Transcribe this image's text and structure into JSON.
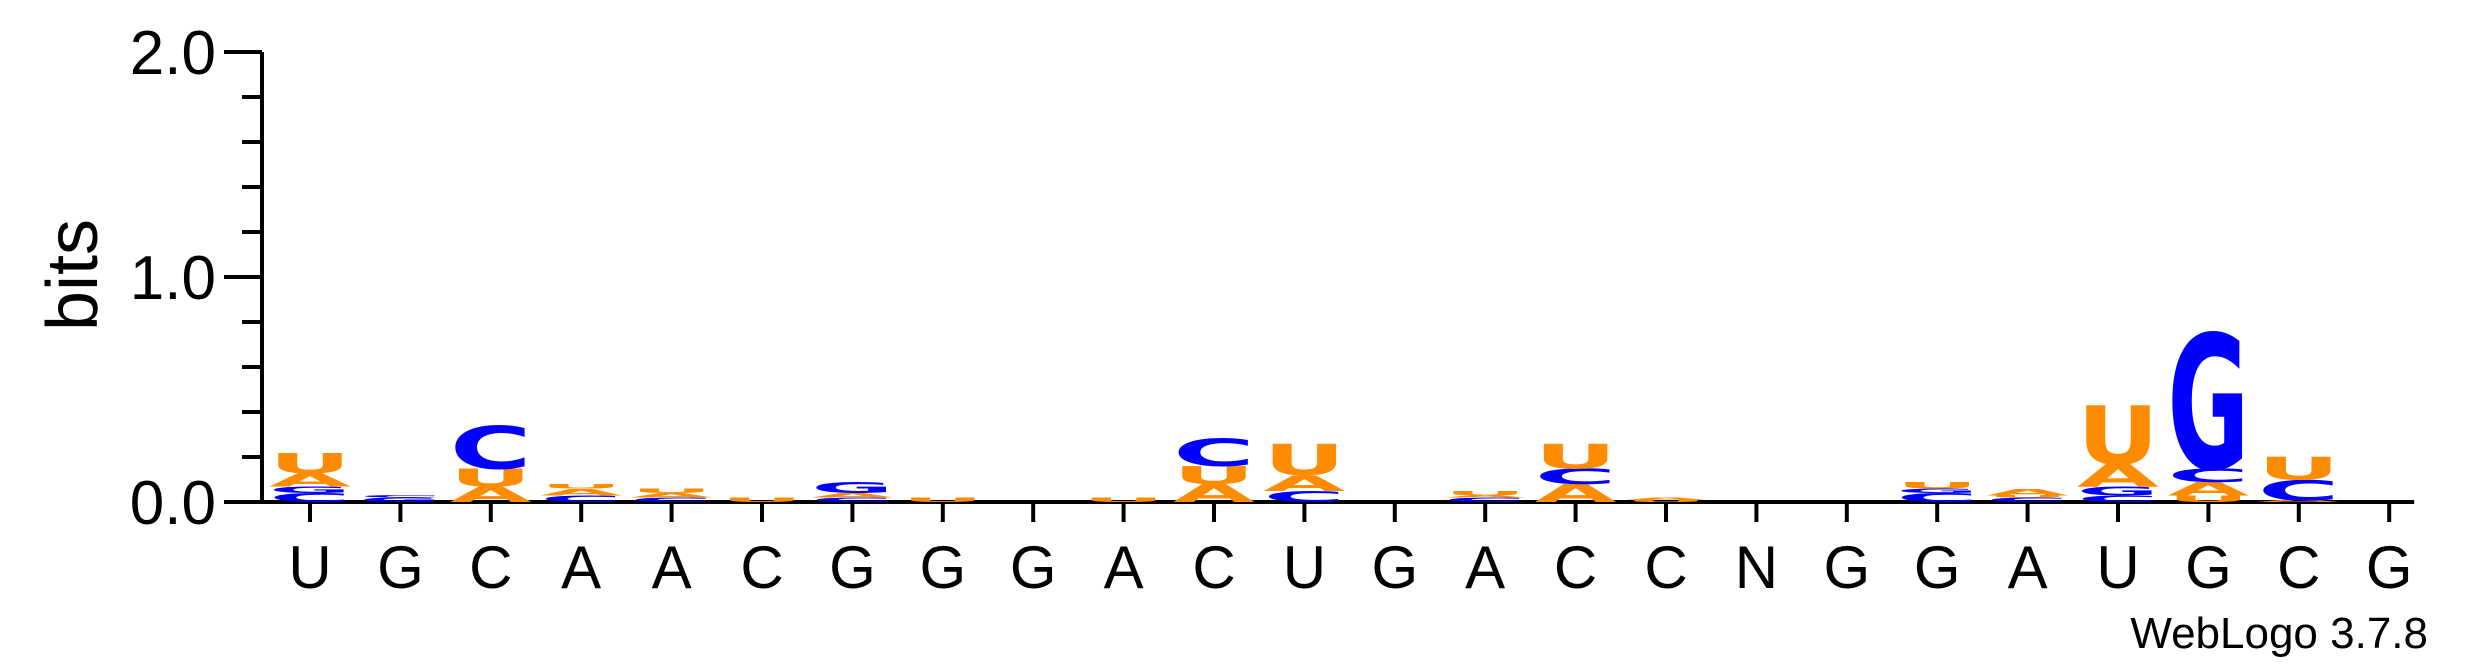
{
  "chart_data": {
    "type": "sequence-logo",
    "ylabel": "bits",
    "ylim": [
      0,
      2.0
    ],
    "yticks": [
      "0.0",
      "1.0",
      "2.0"
    ],
    "positions": [
      "U",
      "G",
      "C",
      "A",
      "A",
      "C",
      "G",
      "G",
      "G",
      "A",
      "C",
      "U",
      "G",
      "A",
      "C",
      "C",
      "N",
      "G",
      "G",
      "A",
      "U",
      "G",
      "C",
      "G"
    ],
    "stacks": [
      [
        [
          "C",
          0.04
        ],
        [
          "G",
          0.03
        ],
        [
          "A",
          0.06
        ],
        [
          "U",
          0.09
        ]
      ],
      [
        [
          "G",
          0.02
        ],
        [
          "C",
          0.01
        ]
      ],
      [
        [
          "A",
          0.07
        ],
        [
          "U",
          0.08
        ],
        [
          "C",
          0.19
        ]
      ],
      [
        [
          "C",
          0.03
        ],
        [
          "A",
          0.03
        ],
        [
          "U",
          0.02
        ]
      ],
      [
        [
          "C",
          0.02
        ],
        [
          "A",
          0.02
        ],
        [
          "U",
          0.02
        ]
      ],
      [
        [
          "U",
          0.02
        ]
      ],
      [
        [
          "C",
          0.02
        ],
        [
          "A",
          0.02
        ],
        [
          "G",
          0.05
        ]
      ],
      [
        [
          "U",
          0.02
        ]
      ],
      [],
      [
        [
          "U",
          0.02
        ]
      ],
      [
        [
          "A",
          0.08
        ],
        [
          "U",
          0.08
        ],
        [
          "C",
          0.12
        ]
      ],
      [
        [
          "C",
          0.05
        ],
        [
          "A",
          0.07
        ],
        [
          "U",
          0.14
        ]
      ],
      [],
      [
        [
          "C",
          0.02
        ],
        [
          "A",
          0.01
        ],
        [
          "U",
          0.02
        ]
      ],
      [
        [
          "A",
          0.08
        ],
        [
          "C",
          0.07
        ],
        [
          "U",
          0.11
        ]
      ],
      [
        [
          "U",
          0.01
        ],
        [
          "A",
          0.01
        ]
      ],
      [],
      [],
      [
        [
          "C",
          0.04
        ],
        [
          "G",
          0.02
        ],
        [
          "U",
          0.03
        ]
      ],
      [
        [
          "C",
          0.02
        ],
        [
          "U",
          0.01
        ],
        [
          "A",
          0.03
        ]
      ],
      [
        [
          "C",
          0.03
        ],
        [
          "G",
          0.04
        ],
        [
          "A",
          0.1
        ],
        [
          "U",
          0.26
        ]
      ],
      [
        [
          "U",
          0.03
        ],
        [
          "A",
          0.06
        ],
        [
          "C",
          0.06
        ],
        [
          "G",
          0.6
        ]
      ],
      [
        [
          "A",
          0.01
        ],
        [
          "C",
          0.09
        ],
        [
          "U",
          0.1
        ]
      ],
      []
    ],
    "colors": {
      "A": "#ff8c00",
      "U": "#ff8c00",
      "C": "#0000ff",
      "G": "#0000ff"
    }
  },
  "footer": "WebLogo 3.7.8"
}
